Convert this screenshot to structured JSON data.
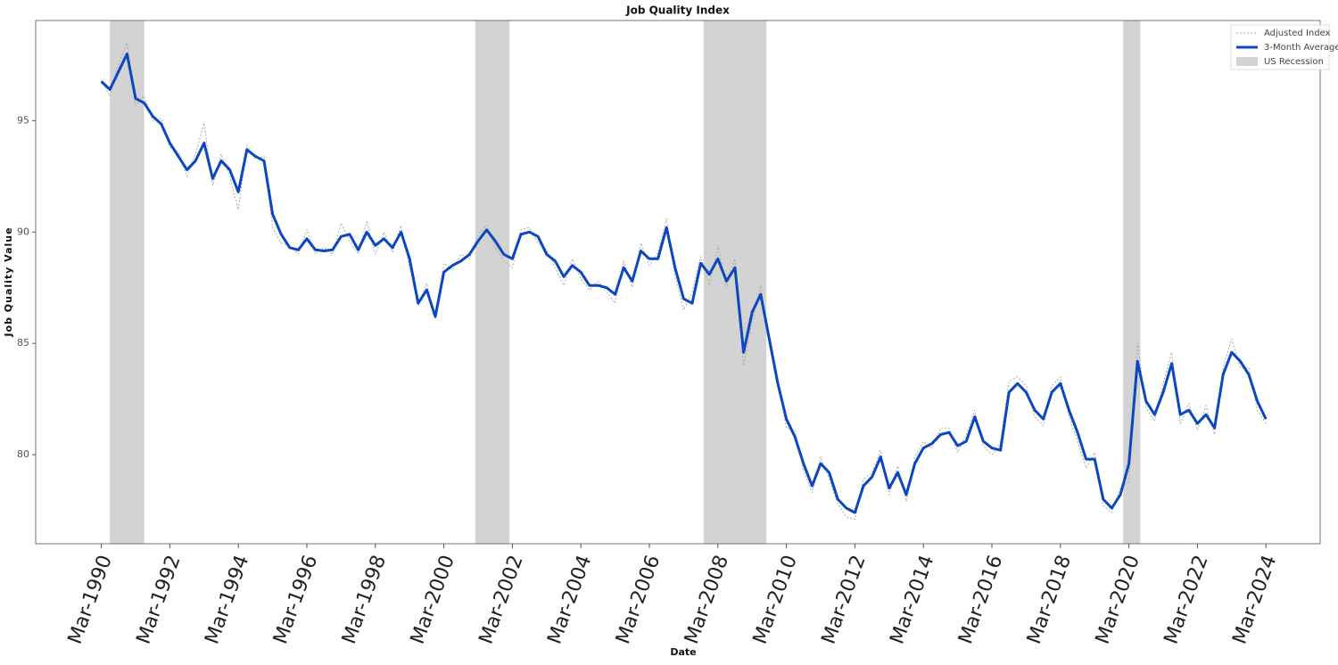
{
  "chart_data": {
    "type": "line",
    "title": "Job Quality Index",
    "x_label": "Date",
    "y_label": "Job Quality Value",
    "xlim": [
      "1988-04",
      "2025-10"
    ],
    "ylim": [
      76,
      99.5
    ],
    "yticks": [
      80,
      85,
      90,
      95
    ],
    "xticks": [
      {
        "value": "1990-03",
        "label": "Mar-1990"
      },
      {
        "value": "1992-03",
        "label": "Mar-1992"
      },
      {
        "value": "1994-03",
        "label": "Mar-1994"
      },
      {
        "value": "1996-03",
        "label": "Mar-1996"
      },
      {
        "value": "1998-03",
        "label": "Mar-1998"
      },
      {
        "value": "2000-03",
        "label": "Mar-2000"
      },
      {
        "value": "2002-03",
        "label": "Mar-2002"
      },
      {
        "value": "2004-03",
        "label": "Mar-2004"
      },
      {
        "value": "2006-03",
        "label": "Mar-2006"
      },
      {
        "value": "2008-03",
        "label": "Mar-2008"
      },
      {
        "value": "2010-03",
        "label": "Mar-2010"
      },
      {
        "value": "2012-03",
        "label": "Mar-2012"
      },
      {
        "value": "2014-03",
        "label": "Mar-2014"
      },
      {
        "value": "2016-03",
        "label": "Mar-2016"
      },
      {
        "value": "2018-03",
        "label": "Mar-2018"
      },
      {
        "value": "2020-03",
        "label": "Mar-2020"
      },
      {
        "value": "2022-03",
        "label": "Mar-2022"
      },
      {
        "value": "2024-03",
        "label": "Mar-2024"
      }
    ],
    "legend_position": "upper right",
    "x": [
      "1990-03",
      "1990-06",
      "1990-09",
      "1990-12",
      "1991-03",
      "1991-06",
      "1991-09",
      "1991-12",
      "1992-03",
      "1992-06",
      "1992-09",
      "1992-12",
      "1993-03",
      "1993-06",
      "1993-09",
      "1993-12",
      "1994-03",
      "1994-06",
      "1994-09",
      "1994-12",
      "1995-03",
      "1995-06",
      "1995-09",
      "1995-12",
      "1996-03",
      "1996-06",
      "1996-09",
      "1996-12",
      "1997-03",
      "1997-06",
      "1997-09",
      "1997-12",
      "1998-03",
      "1998-06",
      "1998-09",
      "1998-12",
      "1999-03",
      "1999-06",
      "1999-09",
      "1999-12",
      "2000-03",
      "2000-06",
      "2000-09",
      "2000-12",
      "2001-03",
      "2001-06",
      "2001-09",
      "2001-12",
      "2002-03",
      "2002-06",
      "2002-09",
      "2002-12",
      "2003-03",
      "2003-06",
      "2003-09",
      "2003-12",
      "2004-03",
      "2004-06",
      "2004-09",
      "2004-12",
      "2005-03",
      "2005-06",
      "2005-09",
      "2005-12",
      "2006-03",
      "2006-06",
      "2006-09",
      "2006-12",
      "2007-03",
      "2007-06",
      "2007-09",
      "2007-12",
      "2008-03",
      "2008-06",
      "2008-09",
      "2008-12",
      "2009-03",
      "2009-06",
      "2009-09",
      "2009-12",
      "2010-03",
      "2010-06",
      "2010-09",
      "2010-12",
      "2011-03",
      "2011-06",
      "2011-09",
      "2011-12",
      "2012-03",
      "2012-06",
      "2012-09",
      "2012-12",
      "2013-03",
      "2013-06",
      "2013-09",
      "2013-12",
      "2014-03",
      "2014-06",
      "2014-09",
      "2014-12",
      "2015-03",
      "2015-06",
      "2015-09",
      "2015-12",
      "2016-03",
      "2016-06",
      "2016-09",
      "2016-12",
      "2017-03",
      "2017-06",
      "2017-09",
      "2017-12",
      "2018-03",
      "2018-06",
      "2018-09",
      "2018-12",
      "2019-03",
      "2019-06",
      "2019-09",
      "2019-12",
      "2020-03",
      "2020-06",
      "2020-09",
      "2020-12",
      "2021-03",
      "2021-06",
      "2021-09",
      "2021-12",
      "2022-03",
      "2022-06",
      "2022-09",
      "2022-12",
      "2023-03",
      "2023-06",
      "2023-09",
      "2023-12",
      "2024-03"
    ],
    "series": [
      {
        "name": "Adjusted Index",
        "color": "#aaaaaa",
        "style": "dotted",
        "values": [
          96.8,
          96.1,
          97.5,
          98.5,
          95.7,
          96.1,
          95.0,
          95.1,
          93.8,
          93.6,
          92.5,
          93.5,
          94.9,
          92.1,
          93.5,
          92.5,
          91.0,
          93.9,
          93.3,
          93.4,
          90.2,
          89.5,
          89.4,
          89.0,
          90.1,
          89.0,
          89.3,
          89.0,
          90.4,
          89.6,
          89.0,
          90.5,
          89.0,
          90.0,
          89.1,
          90.3,
          88.4,
          86.7,
          87.7,
          86.1,
          88.6,
          88.3,
          89.0,
          88.8,
          89.9,
          90.3,
          89.3,
          88.7,
          88.4,
          90.1,
          90.2,
          89.5,
          89.2,
          88.4,
          87.6,
          88.8,
          87.9,
          87.4,
          87.8,
          87.3,
          86.8,
          88.7,
          87.5,
          89.5,
          88.5,
          89.1,
          90.6,
          88.0,
          86.5,
          87.3,
          88.9,
          87.6,
          89.4,
          87.5,
          88.8,
          84.0,
          86.0,
          87.6,
          84.9,
          83.4,
          81.2,
          81.1,
          79.3,
          78.3,
          79.9,
          78.9,
          77.8,
          77.2,
          77.1,
          78.9,
          79.2,
          80.2,
          78.2,
          79.5,
          77.9,
          79.9,
          80.6,
          80.3,
          81.2,
          81.2,
          80.1,
          80.9,
          82.0,
          80.4,
          80.0,
          80.5,
          83.3,
          83.5,
          83.1,
          81.7,
          81.3,
          83.1,
          83.5,
          81.7,
          80.6,
          79.4,
          80.1,
          77.7,
          77.4,
          78.5,
          78.8,
          85.0,
          82.1,
          81.5,
          83.2,
          84.6,
          81.4,
          82.3,
          81.1,
          82.2,
          80.9,
          83.9,
          85.2,
          83.9,
          83.9,
          82.0,
          81.4
        ]
      },
      {
        "name": "3-Month Average",
        "color": "#0b47bf",
        "style": "solid",
        "values": [
          96.76,
          96.4,
          97.2,
          98.0,
          96.0,
          95.8,
          95.2,
          94.85,
          94.0,
          93.4,
          92.8,
          93.2,
          94.0,
          92.4,
          93.2,
          92.8,
          91.8,
          93.7,
          93.4,
          93.2,
          90.8,
          89.9,
          89.3,
          89.2,
          89.7,
          89.2,
          89.15,
          89.2,
          89.8,
          89.9,
          89.2,
          90.0,
          89.4,
          89.7,
          89.3,
          90.0,
          88.8,
          86.8,
          87.4,
          86.2,
          88.2,
          88.5,
          88.7,
          89.0,
          89.6,
          90.1,
          89.6,
          89.0,
          88.8,
          89.9,
          90.0,
          89.8,
          89.0,
          88.7,
          88.0,
          88.5,
          88.2,
          87.6,
          87.6,
          87.5,
          87.2,
          88.4,
          87.8,
          89.15,
          88.8,
          88.8,
          90.2,
          88.4,
          87.0,
          86.8,
          88.6,
          88.1,
          88.8,
          87.8,
          88.4,
          84.6,
          86.4,
          87.2,
          85.2,
          83.2,
          81.6,
          80.8,
          79.6,
          78.6,
          79.6,
          79.2,
          78.0,
          77.6,
          77.4,
          78.6,
          79.0,
          79.9,
          78.5,
          79.2,
          78.2,
          79.6,
          80.3,
          80.5,
          80.9,
          81.0,
          80.4,
          80.6,
          81.7,
          80.6,
          80.3,
          80.2,
          82.8,
          83.2,
          82.8,
          82.0,
          81.6,
          82.8,
          83.2,
          82.0,
          81.0,
          79.8,
          79.8,
          78.0,
          77.6,
          78.2,
          79.6,
          84.2,
          82.4,
          81.8,
          82.8,
          84.1,
          81.8,
          82.0,
          81.4,
          81.8,
          81.2,
          83.6,
          84.6,
          84.2,
          83.6,
          82.4,
          81.6
        ]
      }
    ],
    "recessions": {
      "name": "US Recession",
      "color": "#d3d3d3",
      "periods": [
        {
          "start": "1990-06",
          "end": "1991-06"
        },
        {
          "start": "2001-02",
          "end": "2002-02"
        },
        {
          "start": "2007-10",
          "end": "2009-08"
        },
        {
          "start": "2020-01",
          "end": "2020-07"
        }
      ]
    }
  }
}
